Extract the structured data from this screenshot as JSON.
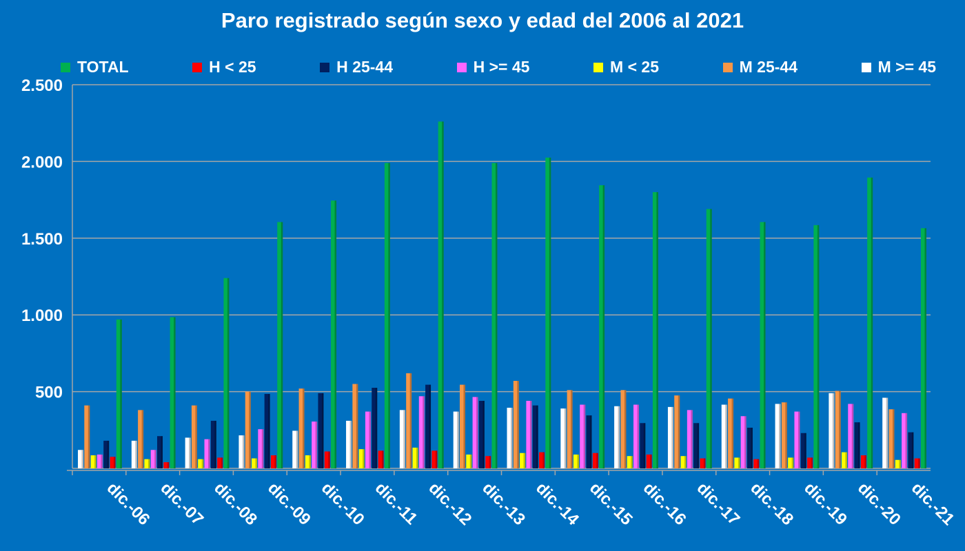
{
  "chart_data": {
    "type": "bar",
    "title": "Paro registrado según sexo y edad del 2006 al 2021",
    "xlabel": "",
    "ylabel": "",
    "ylim": [
      0,
      2500
    ],
    "yticks": [
      0,
      500,
      1000,
      1500,
      2000,
      2500
    ],
    "ytick_labels": [
      "",
      "500",
      "1.000",
      "1.500",
      "2.000",
      "2.500"
    ],
    "grid": true,
    "legend_position": "top",
    "categories": [
      "dic.-06",
      "dic.-07",
      "dic.-08",
      "dic.-09",
      "dic.-10",
      "dic.-11",
      "dic.-12",
      "dic.-13",
      "dic.-14",
      "dic.-15",
      "dic.-16",
      "dic.-17",
      "dic.-18",
      "dic.-19",
      "dic.-20",
      "dic.-21"
    ],
    "legend_order": [
      "TOTAL",
      "H < 25",
      "H 25-44",
      "H >= 45",
      "M < 25",
      "M 25-44",
      "M >= 45"
    ],
    "series": [
      {
        "name": "M >= 45",
        "color": "#ffffff",
        "values": [
          120,
          180,
          200,
          215,
          245,
          310,
          380,
          370,
          395,
          390,
          405,
          400,
          415,
          420,
          490,
          460
        ]
      },
      {
        "name": "M 25-44",
        "color": "#f79646",
        "values": [
          410,
          380,
          410,
          500,
          520,
          550,
          620,
          545,
          570,
          510,
          510,
          475,
          455,
          430,
          505,
          385
        ]
      },
      {
        "name": "M < 25",
        "color": "#ffff00",
        "values": [
          85,
          60,
          60,
          65,
          85,
          125,
          135,
          90,
          100,
          90,
          80,
          80,
          70,
          70,
          105,
          55
        ]
      },
      {
        "name": "H >= 45",
        "color": "#ff66ff",
        "values": [
          90,
          120,
          190,
          255,
          305,
          370,
          470,
          465,
          440,
          415,
          415,
          380,
          340,
          370,
          420,
          360
        ]
      },
      {
        "name": "H 25-44",
        "color": "#002060",
        "values": [
          180,
          210,
          310,
          485,
          490,
          525,
          545,
          440,
          410,
          345,
          295,
          295,
          265,
          230,
          300,
          235
        ]
      },
      {
        "name": "H < 25",
        "color": "#ff0000",
        "values": [
          75,
          40,
          70,
          85,
          110,
          115,
          115,
          80,
          105,
          100,
          90,
          65,
          60,
          70,
          85,
          65
        ]
      },
      {
        "name": "TOTAL",
        "color": "#00b050",
        "values": [
          970,
          985,
          1240,
          1605,
          1745,
          1990,
          2260,
          1990,
          2025,
          1845,
          1800,
          1690,
          1605,
          1585,
          1895,
          1565
        ]
      }
    ]
  }
}
